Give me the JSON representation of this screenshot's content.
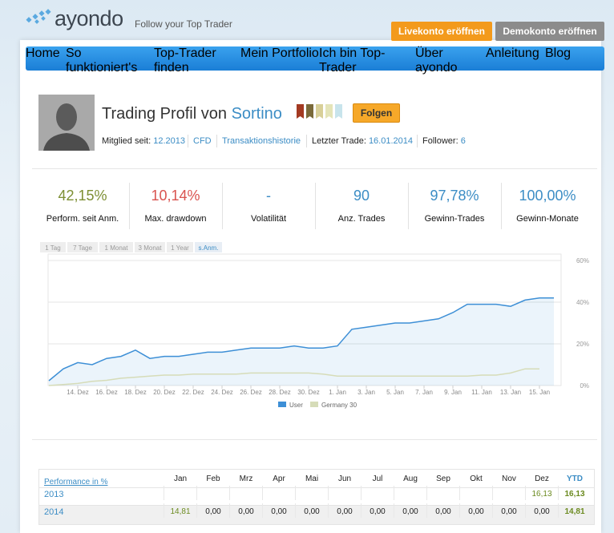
{
  "header": {
    "logo": "ayondo",
    "tagline": "Follow your Top Trader",
    "buttons": [
      "Livekonto eröffnen",
      "Demokonto eröffnen"
    ]
  },
  "nav": [
    "Home",
    "So funktioniert's",
    "Top-Trader finden",
    "Mein Portfolio",
    "Ich bin Top-Trader",
    "Über ayondo",
    "Anleitung",
    "Blog"
  ],
  "profile": {
    "title": "Trading Profil von",
    "name": "Sortino",
    "follow_button": "Folgen",
    "meta": [
      {
        "label": "Mitglied seit:",
        "value": "12.2013"
      },
      {
        "value": "CFD"
      },
      {
        "value": "Transaktionshistorie"
      },
      {
        "label": "Letzter Trade:",
        "value": "16.01.2014"
      },
      {
        "label": "Follower:",
        "value": "6"
      }
    ]
  },
  "stats": [
    {
      "value": "42,15%",
      "label": "Perform. seit Anm.",
      "color": "#7d8f33"
    },
    {
      "value": "10,14%",
      "label": "Max. drawdown",
      "color": "#d9534f"
    },
    {
      "value": "-",
      "label": "Volatilität",
      "color": "#3c8dc5"
    },
    {
      "value": "90",
      "label": "Anz. Trades",
      "color": "#3c8dc5"
    },
    {
      "value": "97,78%",
      "label": "Gewinn-Trades",
      "color": "#3c8dc5"
    },
    {
      "value": "100,00%",
      "label": "Gewinn-Monate",
      "color": "#3c8dc5"
    }
  ],
  "chart": {
    "type": "line",
    "tabs": [
      "1 Tag",
      "7 Tage",
      "1 Monat",
      "3 Monat",
      "1 Year",
      "s.Anm."
    ],
    "categories": [
      null,
      null,
      "14. Dez",
      null,
      "16. Dez",
      null,
      "18. Dez",
      null,
      "20. Dez",
      null,
      "22. Dez",
      null,
      "24. Dez",
      null,
      "26. Dez",
      null,
      "28. Dez",
      null,
      "30. Dez",
      null,
      "1. Jan",
      null,
      "3. Jan",
      null,
      "5. Jan",
      null,
      "7. Jan",
      null,
      "9. Jan",
      null,
      "11. Jan",
      null,
      "13. Jan",
      null,
      "15. Jan",
      null
    ],
    "series": [
      {
        "name": "User",
        "color": "#3d8fd6",
        "area": true,
        "values": [
          2.3,
          8,
          11,
          10,
          13,
          14,
          17,
          13,
          14,
          14,
          15,
          16,
          16,
          17,
          18,
          18,
          18,
          19,
          18,
          18,
          19,
          27,
          28,
          29,
          30,
          30,
          31,
          32,
          35,
          39,
          39,
          39,
          38,
          41,
          42,
          42
        ]
      },
      {
        "name": "Germany 30",
        "color": "#d6dcb8",
        "area": false,
        "values": [
          0,
          0.5,
          1,
          2,
          2.5,
          3.5,
          4,
          4.5,
          5,
          5,
          5.5,
          5.5,
          5.5,
          5.5,
          6,
          6,
          6,
          6,
          6,
          5.5,
          4.5,
          4.5,
          4.5,
          4.5,
          4.5,
          4.5,
          4.5,
          4.5,
          4.5,
          4.5,
          5,
          5,
          6,
          8,
          8,
          null
        ]
      }
    ],
    "ylim": [
      0,
      60
    ],
    "yticks": [
      {
        "value": 0,
        "label": "0%"
      },
      {
        "value": 20,
        "label": "20%"
      },
      {
        "value": 40,
        "label": "40%"
      },
      {
        "value": 60,
        "label": "60%"
      }
    ],
    "grid": true
  },
  "performance_table": {
    "header": [
      "Performance in %",
      "Jan",
      "Feb",
      "Mrz",
      "Apr",
      "Mai",
      "Jun",
      "Jul",
      "Aug",
      "Sep",
      "Okt",
      "Nov",
      "Dez",
      "YTD"
    ],
    "rows": [
      [
        "2013",
        "",
        "",
        "",
        "",
        "",
        "",
        "",
        "",
        "",
        "",
        "",
        "16,13",
        "16,13"
      ],
      [
        "2014",
        "14,81",
        "0,00",
        "0,00",
        "0,00",
        "0,00",
        "0,00",
        "0,00",
        "0,00",
        "0,00",
        "0,00",
        "0,00",
        "0,00",
        "14,81"
      ]
    ]
  }
}
